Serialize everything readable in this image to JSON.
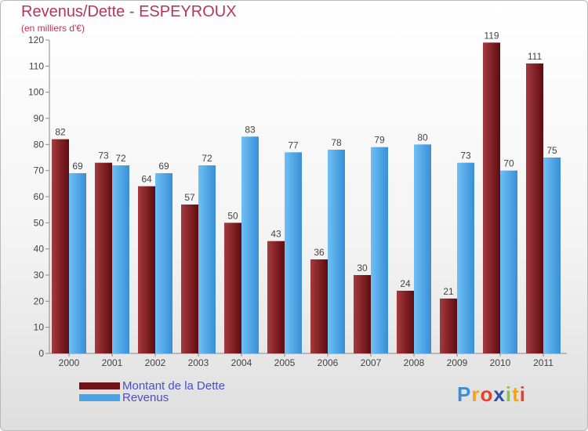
{
  "header": {
    "title": "Revenus/Dette - ESPEYROUX",
    "subtitle": "(en milliers d'€)"
  },
  "colors": {
    "dette": "#6e1418",
    "revenus": "#4aa3e8",
    "title": "#b5365b",
    "legend_text": "#4d4dcc"
  },
  "chart_data": {
    "type": "bar",
    "title": "Revenus/Dette - ESPEYROUX",
    "ylabel": "(en milliers d'€)",
    "xlabel": "",
    "categories": [
      "2000",
      "2001",
      "2002",
      "2003",
      "2004",
      "2005",
      "2006",
      "2007",
      "2008",
      "2009",
      "2010",
      "2011"
    ],
    "series": [
      {
        "name": "Montant de la Dette",
        "values": [
          82,
          73,
          64,
          57,
          50,
          43,
          36,
          30,
          24,
          21,
          119,
          111
        ]
      },
      {
        "name": "Revenus",
        "values": [
          69,
          72,
          69,
          72,
          83,
          77,
          78,
          79,
          80,
          73,
          70,
          75
        ]
      }
    ],
    "ylim": [
      0,
      120
    ],
    "yticks": [
      0,
      10,
      20,
      30,
      40,
      50,
      60,
      70,
      80,
      90,
      100,
      110,
      120
    ],
    "grid": false,
    "legend": "bottom-left"
  },
  "legend": {
    "items": [
      {
        "label": "Montant de la Dette"
      },
      {
        "label": "Revenus"
      }
    ]
  },
  "brand": {
    "letters": [
      "P",
      "r",
      "o",
      "x",
      "i",
      "t",
      "i"
    ],
    "colors": [
      "#3a8fd8",
      "#f3a21b",
      "#e8412c",
      "#2f4fa8",
      "#8cc63f",
      "#f3a21b",
      "#e8412c"
    ]
  }
}
